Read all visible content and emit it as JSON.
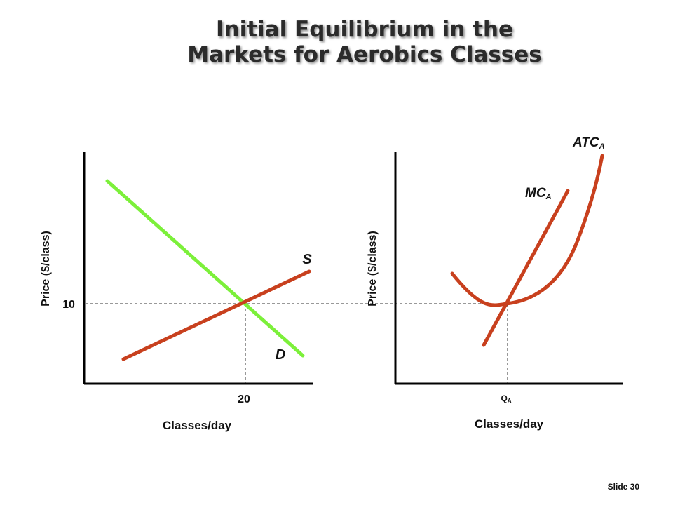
{
  "slide": {
    "title_line1": "Initial Equilibrium in the",
    "title_line2": "Markets for Aerobics Classes",
    "slide_number": "Slide 30"
  },
  "left_panel": {
    "y_axis_label": "Price ($/class)",
    "x_axis_label": "Classes/day",
    "price_tick": "10",
    "quantity_tick": "20",
    "supply_label": "S",
    "demand_label": "D"
  },
  "right_panel": {
    "y_axis_label": "Price ($/class)",
    "x_axis_label": "Classes/day",
    "quantity_tick_base": "Q",
    "quantity_tick_sub": "A",
    "mc_label_base": "MC",
    "mc_label_sub": "A",
    "atc_label_base": "ATC",
    "atc_label_sub": "A"
  },
  "colors": {
    "supply": "#c8401e",
    "demand": "#7cf03a",
    "mc": "#c8401e",
    "atc": "#c8401e",
    "axis": "#000000",
    "guide": "#333333"
  }
}
